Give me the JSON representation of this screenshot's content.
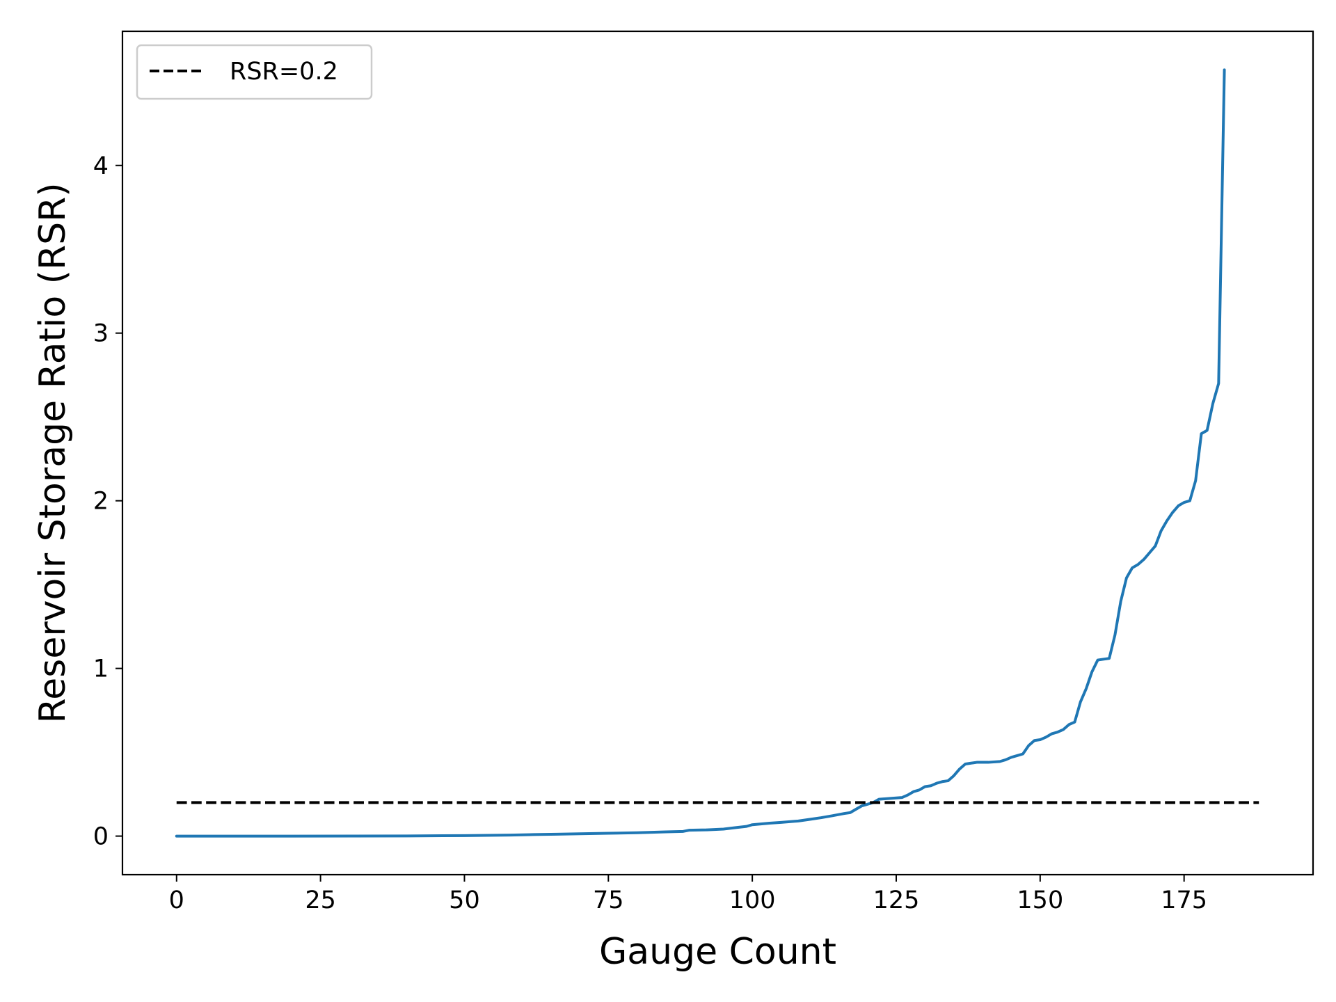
{
  "chart_data": {
    "type": "line",
    "title": "",
    "xlabel": "Gauge Count",
    "ylabel": "Reservoir Storage Ratio (RSR)",
    "xlim": [
      -9.4,
      197.4
    ],
    "ylim": [
      -0.23,
      4.8
    ],
    "xticks": [
      0,
      25,
      50,
      75,
      100,
      125,
      150,
      175
    ],
    "yticks": [
      0,
      1,
      2,
      3,
      4
    ],
    "grid": false,
    "legend": {
      "placement": "top-left",
      "entries": [
        "RSR=0.2"
      ]
    },
    "series": [
      {
        "name": "",
        "color": "#1f77b4",
        "style": "solid",
        "points": [
          [
            0,
            0.0
          ],
          [
            20,
            0.0
          ],
          [
            40,
            0.001
          ],
          [
            50,
            0.003
          ],
          [
            58,
            0.006
          ],
          [
            62,
            0.009
          ],
          [
            66,
            0.011
          ],
          [
            70,
            0.014
          ],
          [
            75,
            0.017
          ],
          [
            80,
            0.02
          ],
          [
            85,
            0.025
          ],
          [
            88,
            0.028
          ],
          [
            89,
            0.035
          ],
          [
            92,
            0.037
          ],
          [
            95,
            0.042
          ],
          [
            97,
            0.05
          ],
          [
            99,
            0.058
          ],
          [
            100,
            0.068
          ],
          [
            103,
            0.077
          ],
          [
            105,
            0.082
          ],
          [
            108,
            0.09
          ],
          [
            110,
            0.1
          ],
          [
            112,
            0.11
          ],
          [
            114,
            0.122
          ],
          [
            116,
            0.135
          ],
          [
            117,
            0.14
          ],
          [
            118,
            0.16
          ],
          [
            119,
            0.18
          ],
          [
            120,
            0.19
          ],
          [
            121,
            0.2
          ],
          [
            122,
            0.22
          ],
          [
            124,
            0.225
          ],
          [
            126,
            0.23
          ],
          [
            127,
            0.245
          ],
          [
            128,
            0.265
          ],
          [
            129,
            0.275
          ],
          [
            130,
            0.295
          ],
          [
            131,
            0.3
          ],
          [
            132,
            0.315
          ],
          [
            133,
            0.325
          ],
          [
            134,
            0.33
          ],
          [
            135,
            0.36
          ],
          [
            136,
            0.4
          ],
          [
            137,
            0.43
          ],
          [
            138,
            0.435
          ],
          [
            139,
            0.44
          ],
          [
            141,
            0.44
          ],
          [
            143,
            0.445
          ],
          [
            144,
            0.455
          ],
          [
            145,
            0.47
          ],
          [
            146,
            0.48
          ],
          [
            147,
            0.49
          ],
          [
            148,
            0.54
          ],
          [
            149,
            0.57
          ],
          [
            150,
            0.575
          ],
          [
            151,
            0.59
          ],
          [
            152,
            0.61
          ],
          [
            153,
            0.62
          ],
          [
            154,
            0.635
          ],
          [
            155,
            0.665
          ],
          [
            156,
            0.68
          ],
          [
            157,
            0.8
          ],
          [
            158,
            0.88
          ],
          [
            159,
            0.98
          ],
          [
            160,
            1.05
          ],
          [
            162,
            1.06
          ],
          [
            163,
            1.2
          ],
          [
            164,
            1.4
          ],
          [
            165,
            1.54
          ],
          [
            166,
            1.6
          ],
          [
            167,
            1.62
          ],
          [
            168,
            1.65
          ],
          [
            169,
            1.69
          ],
          [
            170,
            1.73
          ],
          [
            171,
            1.82
          ],
          [
            172,
            1.88
          ],
          [
            173,
            1.93
          ],
          [
            174,
            1.97
          ],
          [
            175,
            1.99
          ],
          [
            176,
            2.0
          ],
          [
            177,
            2.12
          ],
          [
            178,
            2.4
          ],
          [
            179,
            2.42
          ],
          [
            180,
            2.58
          ],
          [
            181,
            2.7
          ],
          [
            182,
            4.57
          ]
        ]
      },
      {
        "name": "RSR=0.2",
        "color": "#000000",
        "style": "dashed",
        "points": [
          [
            0,
            0.2
          ],
          [
            188,
            0.2
          ]
        ]
      }
    ]
  }
}
